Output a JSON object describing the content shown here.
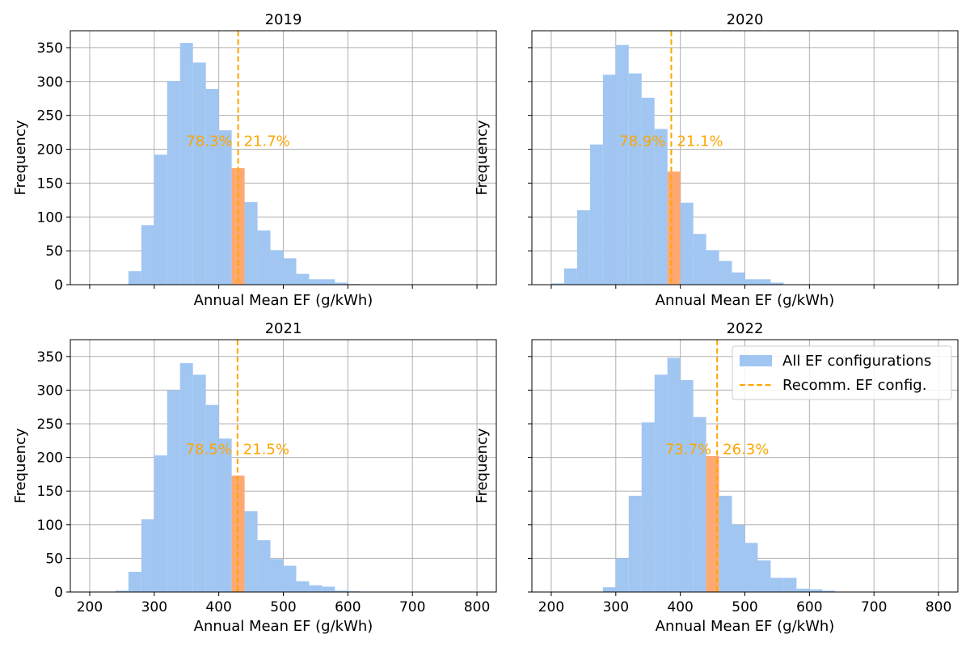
{
  "colors": {
    "bar": "#a1c6f2",
    "highlight_bar": "#ffa871",
    "line": "#ffa500",
    "pct_text": "#ffa500",
    "grid": "#b0b0b0"
  },
  "legend": {
    "panel": 3,
    "placement": "top-right",
    "items": [
      {
        "label": "All EF configurations",
        "kind": "patch"
      },
      {
        "label": "Recomm. EF config.",
        "kind": "dashed-line"
      }
    ]
  },
  "chart_data": [
    {
      "type": "bar",
      "title": "2019",
      "xlabel": "Annual Mean EF (g/kWh)",
      "ylabel": "Frequency",
      "xlim": [
        170,
        830
      ],
      "ylim": [
        0,
        375
      ],
      "xticks": [
        200,
        300,
        400,
        500,
        600,
        700,
        800
      ],
      "yticks": [
        0,
        50,
        100,
        150,
        200,
        250,
        300,
        350
      ],
      "show_xtick_labels": false,
      "show_ytick_labels": true,
      "grid": true,
      "bin_width": 20,
      "bin_starts": [
        260,
        280,
        300,
        320,
        340,
        360,
        380,
        400,
        420,
        440,
        460,
        480,
        500,
        520,
        540,
        560,
        580,
        600
      ],
      "values": [
        20,
        88,
        192,
        301,
        357,
        328,
        289,
        228,
        172,
        122,
        80,
        51,
        39,
        16,
        8,
        8,
        3,
        1
      ],
      "highlight_bin": 420,
      "recommended_ef": 430,
      "pct_below": "78.3%",
      "pct_above": "21.7%",
      "pct_y": 212
    },
    {
      "type": "bar",
      "title": "2020",
      "xlabel": "Annual Mean EF (g/kWh)",
      "ylabel": "Frequency",
      "xlim": [
        170,
        830
      ],
      "ylim": [
        0,
        375
      ],
      "xticks": [
        200,
        300,
        400,
        500,
        600,
        700,
        800
      ],
      "yticks": [
        0,
        50,
        100,
        150,
        200,
        250,
        300,
        350
      ],
      "show_xtick_labels": false,
      "show_ytick_labels": false,
      "grid": true,
      "bin_width": 20,
      "bin_starts": [
        200,
        220,
        240,
        260,
        280,
        300,
        320,
        340,
        360,
        380,
        400,
        420,
        440,
        460,
        480,
        500,
        520,
        540
      ],
      "values": [
        2,
        24,
        110,
        207,
        310,
        354,
        312,
        276,
        230,
        167,
        121,
        75,
        51,
        35,
        18,
        8,
        8,
        3
      ],
      "highlight_bin": 380,
      "recommended_ef": 386,
      "pct_below": "78.9%",
      "pct_above": "21.1%",
      "pct_y": 212
    },
    {
      "type": "bar",
      "title": "2021",
      "xlabel": "Annual Mean EF (g/kWh)",
      "ylabel": "Frequency",
      "xlim": [
        170,
        830
      ],
      "ylim": [
        0,
        375
      ],
      "xticks": [
        200,
        300,
        400,
        500,
        600,
        700,
        800
      ],
      "yticks": [
        0,
        50,
        100,
        150,
        200,
        250,
        300,
        350
      ],
      "show_xtick_labels": true,
      "show_ytick_labels": true,
      "grid": true,
      "bin_width": 20,
      "bin_starts": [
        240,
        260,
        280,
        300,
        320,
        340,
        360,
        380,
        400,
        420,
        440,
        460,
        480,
        500,
        520,
        540,
        560,
        580,
        600
      ],
      "values": [
        2,
        30,
        108,
        203,
        300,
        340,
        323,
        278,
        228,
        173,
        120,
        77,
        49,
        39,
        16,
        10,
        8,
        2,
        1
      ],
      "highlight_bin": 420,
      "recommended_ef": 429,
      "pct_below": "78.5%",
      "pct_above": "21.5%",
      "pct_y": 212
    },
    {
      "type": "bar",
      "title": "2022",
      "xlabel": "Annual Mean EF (g/kWh)",
      "ylabel": "Frequency",
      "xlim": [
        170,
        830
      ],
      "ylim": [
        0,
        375
      ],
      "xticks": [
        200,
        300,
        400,
        500,
        600,
        700,
        800
      ],
      "yticks": [
        0,
        50,
        100,
        150,
        200,
        250,
        300,
        350
      ],
      "show_xtick_labels": true,
      "show_ytick_labels": false,
      "grid": true,
      "bin_width": 20,
      "bin_starts": [
        280,
        300,
        320,
        340,
        360,
        380,
        400,
        420,
        440,
        460,
        480,
        500,
        520,
        540,
        560,
        580,
        600,
        620
      ],
      "values": [
        7,
        50,
        143,
        252,
        323,
        348,
        315,
        260,
        202,
        143,
        100,
        73,
        47,
        21,
        21,
        5,
        4,
        2
      ],
      "highlight_bin": 440,
      "recommended_ef": 457,
      "pct_below": "73.7%",
      "pct_above": "26.3%",
      "pct_y": 212
    }
  ]
}
